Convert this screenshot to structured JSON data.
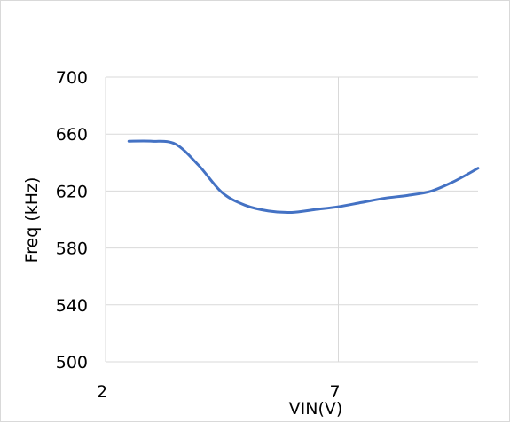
{
  "chart_data": {
    "type": "line",
    "title": "",
    "xlabel": "VIN(V)",
    "ylabel": "Freq (kHz)",
    "xlim": [
      2,
      10
    ],
    "ylim": [
      500,
      700
    ],
    "xticks": [
      2,
      7
    ],
    "yticks": [
      500,
      540,
      580,
      620,
      660,
      700
    ],
    "grid": true,
    "series": [
      {
        "color": "#4472C4",
        "x": [
          2.5,
          3.0,
          3.5,
          4.0,
          4.5,
          5.0,
          5.5,
          6.0,
          6.5,
          7.0,
          7.5,
          8.0,
          8.5,
          9.0,
          9.5,
          10.0
        ],
        "y": [
          655,
          655,
          653,
          638,
          619,
          610,
          606,
          605,
          607,
          609,
          612,
          615,
          617,
          620,
          627,
          636
        ]
      }
    ]
  }
}
